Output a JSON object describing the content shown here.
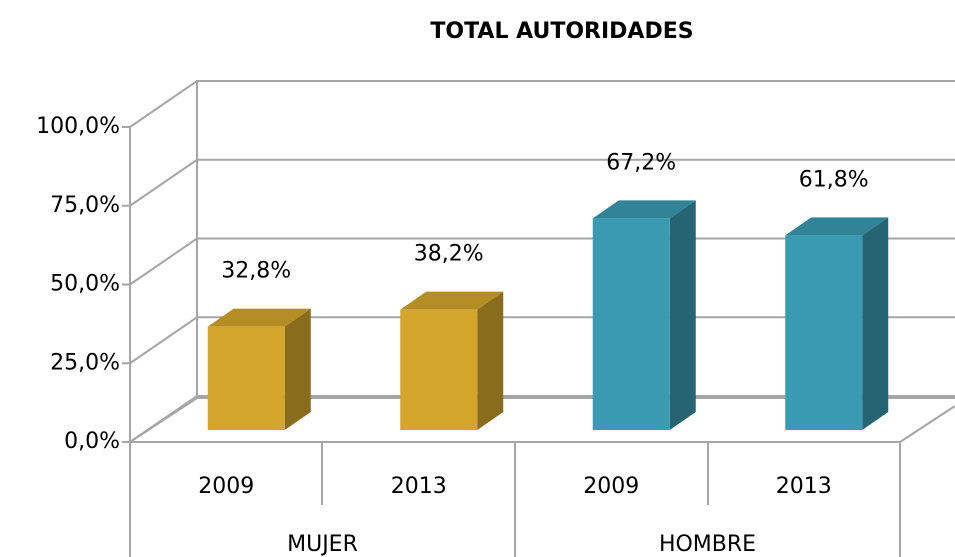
{
  "chart_data": {
    "type": "bar3d",
    "title": "TOTAL AUTORIDADES",
    "categories": [
      "2009",
      "2013",
      "2009",
      "2013"
    ],
    "groups": [
      "MUJER",
      "HOMBRE"
    ],
    "values": [
      32.8,
      38.2,
      67.2,
      61.8
    ],
    "value_labels": [
      "32,8%",
      "38,2%",
      "67,2%",
      "61,8%"
    ],
    "colors": [
      "#d4a62c",
      "#d4a62c",
      "#3a9ab2",
      "#3a9ab2"
    ],
    "ylim": [
      0,
      100
    ],
    "yticks": [
      {
        "value": 0,
        "label": "0,0%"
      },
      {
        "value": 25,
        "label": "25,0%"
      },
      {
        "value": 50,
        "label": "50,0%"
      },
      {
        "value": 75,
        "label": "75,0%"
      },
      {
        "value": 100,
        "label": "100,0%"
      }
    ],
    "grid": true
  }
}
